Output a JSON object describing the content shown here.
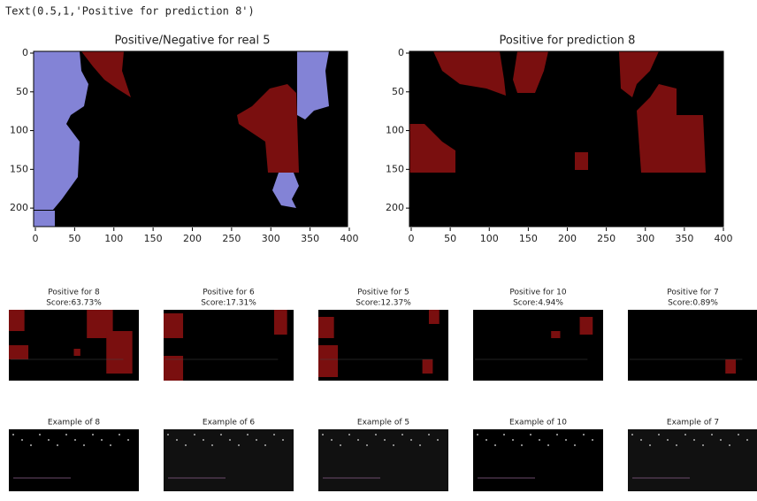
{
  "output_text": "Text(0.5,1,'Positive for prediction 8')",
  "main_plots": [
    {
      "title": "Positive/Negative for real 5",
      "xlim": [
        0,
        400
      ],
      "ylim": [
        0,
        225
      ],
      "xticks": [
        0,
        50,
        100,
        150,
        200,
        250,
        300,
        350,
        400
      ],
      "yticks": [
        0,
        50,
        100,
        150,
        200
      ]
    },
    {
      "title": "Positive for prediction 8",
      "xlim": [
        0,
        400
      ],
      "ylim": [
        0,
        225
      ],
      "xticks": [
        0,
        50,
        100,
        150,
        200,
        250,
        300,
        350,
        400
      ],
      "yticks": [
        0,
        50,
        100,
        150,
        200
      ]
    }
  ],
  "positive_plots": [
    {
      "title": "Positive for 8",
      "score": "Score:63.73%"
    },
    {
      "title": "Positive for 6",
      "score": "Score:17.31%"
    },
    {
      "title": "Positive for 5",
      "score": "Score:12.37%"
    },
    {
      "title": "Positive for 10",
      "score": "Score:4.94%"
    },
    {
      "title": "Positive for 7",
      "score": "Score:0.89%"
    }
  ],
  "example_plots": [
    {
      "title": "Example of 8"
    },
    {
      "title": "Example of 6"
    },
    {
      "title": "Example of 5"
    },
    {
      "title": "Example of 10"
    },
    {
      "title": "Example of 7"
    }
  ]
}
